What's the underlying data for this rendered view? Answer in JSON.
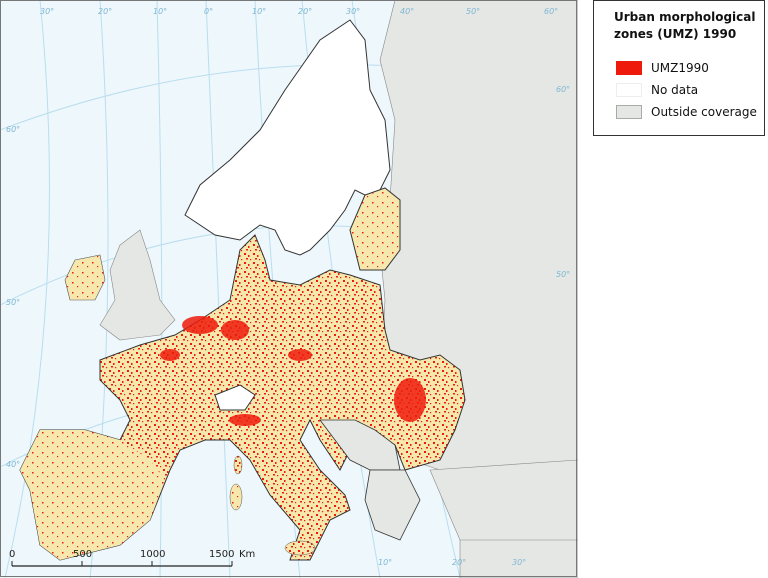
{
  "legend": {
    "title": "Urban morphological zones (UMZ) 1990",
    "items": [
      "UMZ1990",
      "No data",
      "Outside coverage"
    ]
  },
  "scale_bar": {
    "labels": [
      "0",
      "500",
      "1000",
      "1500"
    ],
    "unit": "Km"
  },
  "graticule_labels": [
    "30°",
    "20°",
    "10°",
    "0°",
    "10°",
    "20°",
    "30°",
    "40°",
    "50°",
    "60°",
    "60°",
    "50°",
    "60°",
    "50°",
    "40°",
    "10°",
    "20°",
    "30°"
  ]
}
